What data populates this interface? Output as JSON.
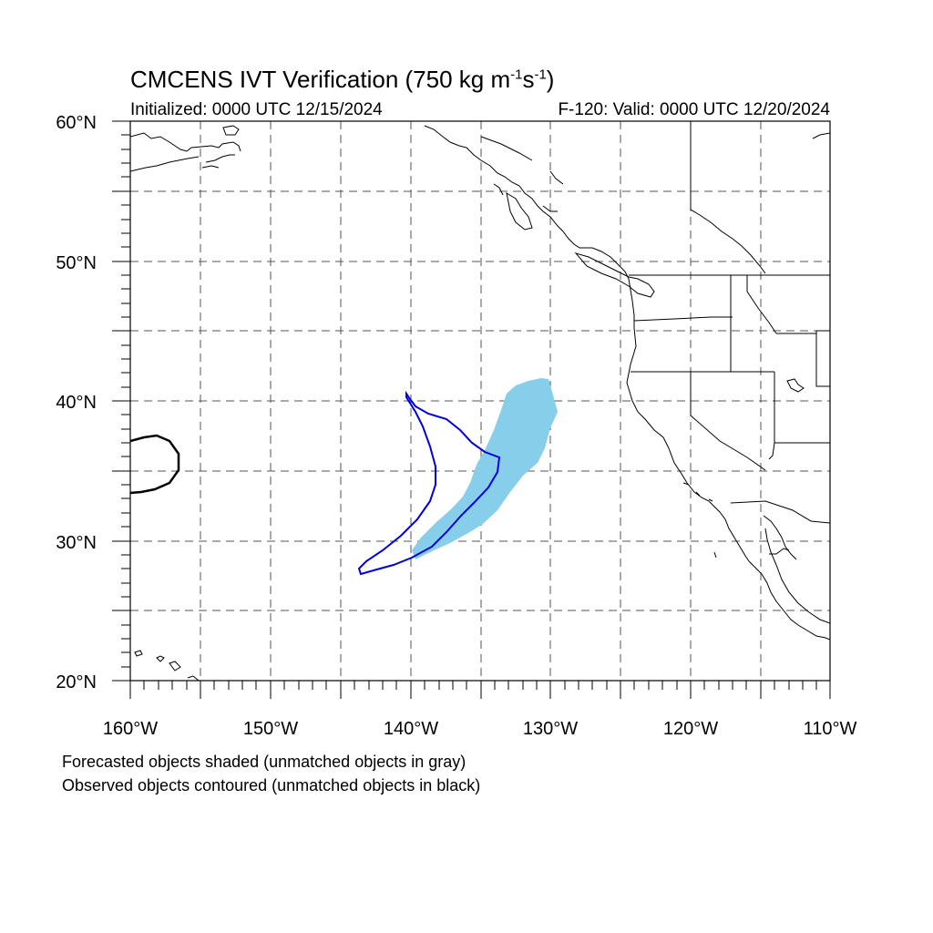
{
  "title": {
    "main": "CMCENS IVT Verification (750 kg m",
    "exp1": "-1",
    "mid": "s",
    "exp2": "-1",
    "close": ")"
  },
  "init_label": "Initialized: 0000 UTC 12/15/2024",
  "valid_label": "F-120: Valid: 0000 UTC 12/20/2024",
  "map": {
    "lon_range": [
      -160,
      -110
    ],
    "lat_range": [
      20,
      60
    ],
    "lat_labels": [
      "60°N",
      "50°N",
      "40°N",
      "30°N",
      "20°N"
    ],
    "lon_labels": [
      "160°W",
      "150°W",
      "140°W",
      "130°W",
      "120°W",
      "110°W"
    ],
    "grid": "dashed every 5°",
    "colors": {
      "forecast_fill": "#87ceeb",
      "observed_matched": "#0000dd",
      "observed_unmatched": "#000000",
      "coastline": "#000000"
    }
  },
  "captions": {
    "line1": "Forecasted objects shaded (unmatched objects in gray)",
    "line2": "Observed objects contoured (unmatched objects in black)"
  }
}
